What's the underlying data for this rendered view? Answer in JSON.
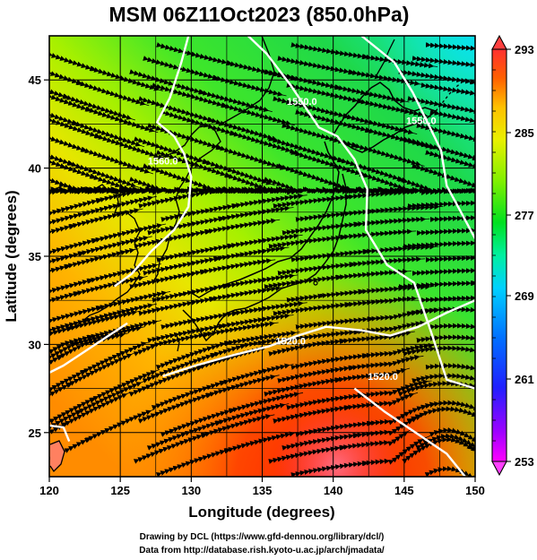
{
  "title": "MSM 06Z11Oct2023 (850.0hPa)",
  "credits": [
    "Drawing by DCL (https://www.gfd-dennou.org/library/dcl/)",
    "Data from http://database.rish.kyoto-u.ac.jp/arch/jmadata/"
  ],
  "chart_data": {
    "type": "heatmap",
    "title": "MSM 06Z11Oct2023 (850.0hPa)",
    "xlabel": "Longitude (degrees)",
    "ylabel": "Latitude  (degrees)",
    "xlim": [
      120,
      150
    ],
    "ylim": [
      22.5,
      47.5
    ],
    "xticks": [
      120,
      125,
      130,
      135,
      140,
      145,
      150
    ],
    "yticks": [
      25,
      30,
      35,
      40,
      45
    ],
    "grid": true,
    "grid_lon": [
      125,
      127.5,
      130,
      132.5,
      135,
      137.5,
      140,
      142.5,
      145,
      147.5
    ],
    "grid_lat": [
      25,
      27.5,
      30,
      32.5,
      35,
      37.5,
      40,
      42.5,
      45
    ],
    "colorbar": {
      "min": 253,
      "max": 293,
      "tick_labels": [
        "293",
        "285",
        "277",
        "269",
        "261",
        "253"
      ],
      "colors": [
        "#ff00ff",
        "#7f00ff",
        "#0000ff",
        "#0080ff",
        "#00e0ff",
        "#00ff80",
        "#00e000",
        "#80ff00",
        "#e0ff00",
        "#ffd000",
        "#ff8000",
        "#ff2000",
        "#ff4040"
      ]
    },
    "contour_labels": [
      {
        "text": "1560.0",
        "lon": 128.0,
        "lat": 40.2
      },
      {
        "text": "1550.0",
        "lon": 137.8,
        "lat": 43.6
      },
      {
        "text": "1550.0",
        "lon": 146.2,
        "lat": 42.5
      },
      {
        "text": "1520.0",
        "lon": 137.0,
        "lat": 30.0
      },
      {
        "text": "1520.0",
        "lon": 143.5,
        "lat": 28.0
      }
    ],
    "contours": [
      [
        [
          129.8,
          47.5
        ],
        [
          129.3,
          46.0
        ],
        [
          128.5,
          44.0
        ],
        [
          127.6,
          42.6
        ],
        [
          128.8,
          41.8
        ],
        [
          129.5,
          40.8
        ],
        [
          130.0,
          39.5
        ],
        [
          129.8,
          37.8
        ],
        [
          128.8,
          36.5
        ],
        [
          127.2,
          35.3
        ],
        [
          125.8,
          34.0
        ],
        [
          124.6,
          33.3
        ]
      ],
      [
        [
          134.0,
          47.5
        ],
        [
          135.3,
          46.5
        ],
        [
          137.0,
          44.7
        ],
        [
          139.0,
          42.3
        ],
        [
          140.3,
          41.8
        ],
        [
          141.5,
          40.5
        ],
        [
          142.4,
          38.8
        ],
        [
          142.3,
          36.5
        ],
        [
          143.8,
          34.5
        ],
        [
          145.7,
          33.5
        ],
        [
          146.9,
          30.7
        ],
        [
          148.0,
          28.0
        ],
        [
          150.0,
          27.5
        ]
      ],
      [
        [
          142.0,
          47.5
        ],
        [
          144.3,
          46.0
        ],
        [
          145.6,
          44.3
        ],
        [
          146.7,
          42.5
        ],
        [
          147.6,
          41.0
        ],
        [
          148.0,
          39.0
        ],
        [
          149.0,
          37.5
        ],
        [
          150.0,
          36.0
        ]
      ],
      [
        [
          125.5,
          31.2
        ],
        [
          124.0,
          30.4
        ],
        [
          122.5,
          29.6
        ],
        [
          121.0,
          28.8
        ],
        [
          120.0,
          28.4
        ]
      ],
      [
        [
          128.0,
          28.2
        ],
        [
          130.3,
          28.8
        ],
        [
          133.0,
          29.4
        ],
        [
          135.5,
          29.9
        ],
        [
          137.5,
          30.5
        ],
        [
          139.5,
          31.0
        ],
        [
          142.0,
          30.8
        ],
        [
          144.0,
          30.5
        ],
        [
          146.0,
          31.0
        ],
        [
          148.0,
          31.8
        ],
        [
          150.0,
          32.5
        ]
      ],
      [
        [
          141.5,
          27.5
        ],
        [
          143.6,
          26.2
        ],
        [
          145.8,
          25.0
        ],
        [
          148.0,
          23.8
        ],
        [
          149.3,
          22.5
        ]
      ],
      [
        [
          120.0,
          25.4
        ],
        [
          121.0,
          25.3
        ],
        [
          121.4,
          24.5
        ]
      ]
    ]
  }
}
